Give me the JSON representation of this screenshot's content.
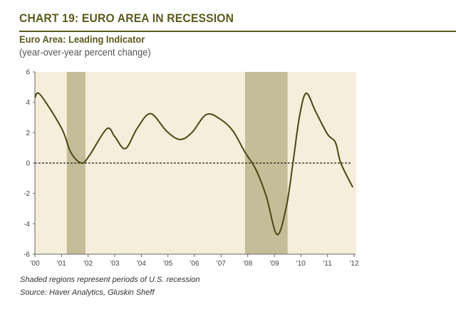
{
  "title": "CHART 19: EURO AREA IN RECESSION",
  "subtitle": "Euro Area: Leading Indicator",
  "units": "(year-over-year percent change)",
  "footnotes": [
    "Shaded regions represent periods of U.S. recession",
    "Source: Haver Analytics, Gluskin Sheff"
  ],
  "colors": {
    "title": "#5b5a1d",
    "line": "#4a4714",
    "plot_bg": "#f5eedb",
    "shade": "#c4bd98"
  },
  "chart_data": {
    "type": "line",
    "xlim": [
      2000,
      2012
    ],
    "ylim": [
      -6,
      6
    ],
    "x_ticks": [
      2000,
      2001,
      2002,
      2003,
      2004,
      2005,
      2006,
      2007,
      2008,
      2009,
      2010,
      2011,
      2012
    ],
    "x_tick_labels": [
      "'00",
      "'01",
      "'02",
      "'03",
      "'04",
      "'05",
      "'06",
      "'07",
      "'08",
      "'09",
      "'10",
      "'11",
      "'12"
    ],
    "y_ticks": [
      6,
      4,
      2,
      0,
      -2,
      -4,
      -6
    ],
    "y_tick_labels": [
      "6",
      "4",
      "2",
      "0",
      "-2",
      "-4",
      "-6"
    ],
    "zero_line": "dashed",
    "grid": false,
    "shaded_periods": [
      [
        2001.2,
        2001.9
      ],
      [
        2007.9,
        2009.5
      ]
    ],
    "series": [
      {
        "x": [
          2000,
          2000.2,
          2001,
          2001.35,
          2001.75,
          2002.05,
          2002.7,
          2003.0,
          2003.4,
          2003.85,
          2004.35,
          2004.95,
          2005.45,
          2005.9,
          2006.45,
          2007.0,
          2007.45,
          2007.9,
          2008.3,
          2008.7,
          2009.1,
          2009.45,
          2009.7,
          2009.95,
          2010.2,
          2010.55,
          2011.0,
          2011.3,
          2011.5,
          2011.95
        ],
        "y": [
          4.3,
          4.5,
          2.3,
          0.7,
          0,
          0.5,
          2.25,
          1.75,
          0.95,
          2.3,
          3.25,
          2.1,
          1.55,
          2.0,
          3.2,
          2.85,
          2.1,
          0.7,
          -0.4,
          -2.2,
          -4.7,
          -2.9,
          0,
          3.1,
          4.6,
          3.4,
          1.9,
          1.35,
          0,
          -1.6
        ]
      }
    ]
  }
}
